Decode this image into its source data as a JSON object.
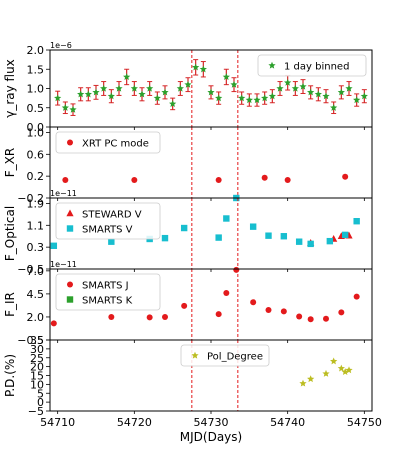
{
  "chart_data": {
    "type": "scatter",
    "xlabel": "MJD(Days)",
    "xlim": [
      54709,
      54751
    ],
    "x_ticks": [
      54710,
      54720,
      54730,
      54740,
      54750
    ],
    "vlines": [
      54727.5,
      54733.5
    ],
    "panels": [
      {
        "id": "gamma",
        "ylabel": "γ_ray flux",
        "ylim": [
          0.0,
          2.0
        ],
        "y_ticks": [
          0.0,
          0.5,
          1.0,
          1.5,
          2.0
        ],
        "y_tick_labels": [
          "0.0",
          "0.5",
          "1.0",
          "1.5",
          "2.0"
        ],
        "offset_text": "1e−6",
        "legend": "top-right",
        "series": [
          {
            "name": "1 day binned",
            "marker": "star",
            "color": "#2ca02c",
            "errcolor": "#d62728",
            "x": [
              54710,
              54711,
              54712,
              54713,
              54714,
              54715,
              54716,
              54717,
              54718,
              54719,
              54720,
              54721,
              54722,
              54723,
              54724,
              54725,
              54726,
              54727,
              54728,
              54729,
              54730,
              54731,
              54732,
              54733,
              54734,
              54735,
              54736,
              54737,
              54738,
              54739,
              54740,
              54741,
              54742,
              54743,
              54744,
              54745,
              54746,
              54747,
              54748,
              54749,
              54750
            ],
            "y": [
              0.75,
              0.5,
              0.45,
              0.85,
              0.85,
              0.9,
              1.0,
              0.8,
              1.0,
              1.3,
              1.0,
              0.85,
              1.0,
              0.75,
              0.9,
              0.6,
              1.0,
              1.1,
              1.55,
              1.5,
              0.9,
              0.75,
              1.3,
              1.1,
              0.75,
              0.7,
              0.7,
              0.75,
              0.8,
              1.0,
              1.15,
              1.0,
              1.05,
              0.9,
              0.85,
              0.8,
              0.5,
              0.9,
              1.0,
              0.7,
              0.8
            ],
            "err": [
              0.18,
              0.15,
              0.15,
              0.17,
              0.17,
              0.18,
              0.18,
              0.17,
              0.18,
              0.2,
              0.18,
              0.17,
              0.18,
              0.16,
              0.17,
              0.15,
              0.18,
              0.18,
              0.2,
              0.2,
              0.17,
              0.16,
              0.2,
              0.18,
              0.16,
              0.16,
              0.16,
              0.16,
              0.17,
              0.18,
              0.19,
              0.18,
              0.18,
              0.17,
              0.17,
              0.17,
              0.15,
              0.17,
              0.18,
              0.16,
              0.17
            ]
          }
        ]
      },
      {
        "id": "xr",
        "ylabel": "F_XR",
        "ylim": [
          -0.2,
          1.1
        ],
        "y_ticks": [
          -0.2,
          0.2,
          0.6,
          1.0
        ],
        "y_tick_labels": [
          "−0.2",
          "0.2",
          "0.6",
          "1.0"
        ],
        "offset_text": "",
        "legend": "top-left",
        "series": [
          {
            "name": "XRT PC mode",
            "marker": "circle",
            "color": "#e31a1c",
            "x": [
              54711,
              54720,
              54731,
              54737,
              54740,
              54747.5
            ],
            "y": [
              0.13,
              0.13,
              0.13,
              0.17,
              0.13,
              0.19
            ]
          }
        ]
      },
      {
        "id": "optical",
        "ylabel": "F_Optical",
        "ylim": [
          -0.5,
          2.1
        ],
        "y_ticks": [
          -0.5,
          0.3,
          1.1,
          1.9
        ],
        "y_tick_labels": [
          "−0.5",
          "0.3",
          "1.1",
          "1.9"
        ],
        "offset_text": "1e−11",
        "legend": "top-left",
        "series": [
          {
            "name": "STEWARD V",
            "marker": "triangle",
            "color": "#e31a1c",
            "x": [
              54743,
              54746,
              54747,
              54748
            ],
            "y": [
              0.45,
              0.6,
              0.7,
              0.72
            ]
          },
          {
            "name": "SMARTS V",
            "marker": "square",
            "color": "#17becf",
            "x": [
              54709.5,
              54717,
              54722,
              54724,
              54726.5,
              54731,
              54732,
              54733.3,
              54735.5,
              54737.5,
              54739.5,
              54741.5,
              54743,
              54745.5,
              54747.5,
              54749
            ],
            "y": [
              0.35,
              0.5,
              0.6,
              0.63,
              1.0,
              0.65,
              1.35,
              2.1,
              1.05,
              0.72,
              0.7,
              0.5,
              0.42,
              0.52,
              0.75,
              1.25
            ]
          }
        ]
      },
      {
        "id": "ir",
        "ylabel": "F_IR",
        "ylim": [
          -0.5,
          7.2
        ],
        "y_ticks": [
          -0.5,
          2.0,
          4.5,
          7.0
        ],
        "y_tick_labels": [
          "−0.5",
          "2.0",
          "4.5",
          "7.0"
        ],
        "offset_text": "1e−11",
        "legend": "top-left",
        "series": [
          {
            "name": "SMARTS J",
            "marker": "circle",
            "color": "#e31a1c",
            "x": [
              54709.5,
              54717,
              54722,
              54724,
              54726.5,
              54731,
              54732,
              54733.3,
              54735.5,
              54737.5,
              54739.5,
              54741.5,
              54743,
              54745,
              54747,
              54749
            ],
            "y": [
              1.3,
              2.0,
              1.95,
              2.0,
              3.2,
              2.3,
              4.6,
              7.1,
              3.6,
              2.75,
              2.6,
              2.05,
              1.75,
              1.8,
              2.5,
              4.2
            ]
          },
          {
            "name": "SMARTS K",
            "marker": "square",
            "color": "#2ca02c",
            "x": [],
            "y": []
          }
        ]
      },
      {
        "id": "pd",
        "ylabel": "P.D.(%)",
        "ylim": [
          -5,
          35
        ],
        "y_ticks": [
          -5,
          0,
          5,
          10,
          15,
          20,
          25,
          30,
          35
        ],
        "y_tick_labels": [
          "−5",
          "0",
          "5",
          "10",
          "15",
          "20",
          "25",
          "30",
          "35"
        ],
        "offset_text": "",
        "legend": "top-center",
        "series": [
          {
            "name": "Pol_Degree",
            "marker": "star",
            "color": "#bcbd22",
            "x": [
              54742,
              54743,
              54745,
              54746,
              54747,
              54747.5,
              54748
            ],
            "y": [
              10.5,
              13,
              16,
              23,
              19,
              17,
              18
            ]
          }
        ]
      }
    ]
  }
}
